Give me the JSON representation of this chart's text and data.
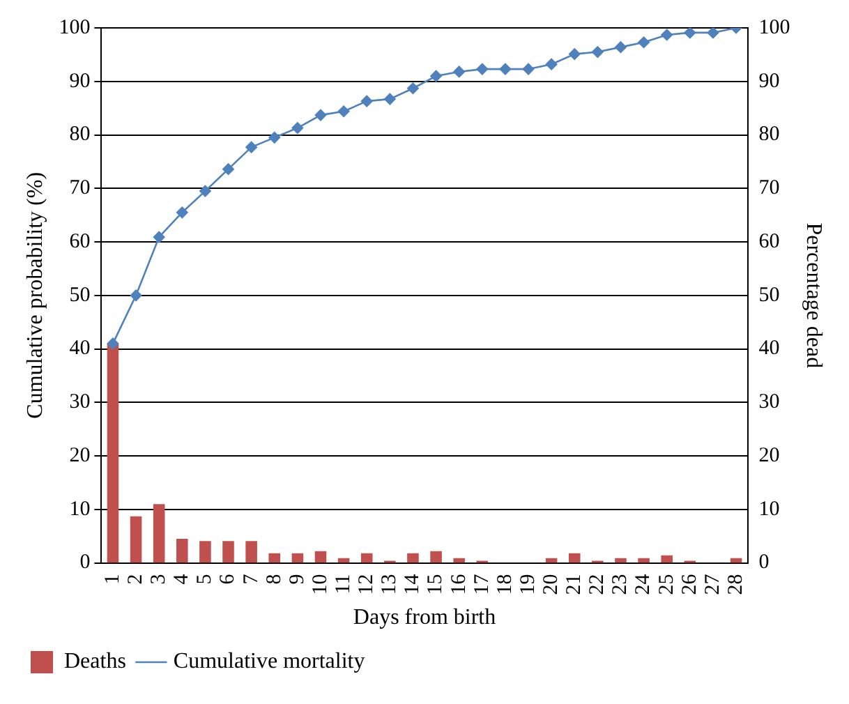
{
  "chart_data": {
    "type": "bar",
    "xlabel": "Days from birth",
    "ylabel": "Cumulative probability (%)",
    "y2label": "Percentage dead",
    "categories": [
      "1",
      "2",
      "3",
      "4",
      "5",
      "6",
      "7",
      "8",
      "9",
      "10",
      "11",
      "12",
      "13",
      "14",
      "15",
      "16",
      "17",
      "18",
      "19",
      "20",
      "21",
      "22",
      "23",
      "24",
      "25",
      "26",
      "27",
      "28"
    ],
    "series": [
      {
        "name": "Deaths",
        "axis": "y2",
        "color": "#c0504d",
        "values": [
          41,
          8.7,
          11,
          4.5,
          4.1,
          4.1,
          4.1,
          1.8,
          1.8,
          2.2,
          0.9,
          1.8,
          0.4,
          1.8,
          2.2,
          0.9,
          0.4,
          0,
          0,
          0.9,
          1.8,
          0.4,
          0.9,
          0.9,
          1.4,
          0.4,
          0,
          0.9
        ]
      },
      {
        "name": "Cumulative mortality",
        "type": "line",
        "color": "#4f81bd",
        "marker": "diamond",
        "line_style": "solid",
        "values": [
          41,
          50,
          60.9,
          65.5,
          69.5,
          73.6,
          77.7,
          79.5,
          81.3,
          83.7,
          84.4,
          86.3,
          86.7,
          88.7,
          91,
          91.8,
          92.3,
          92.3,
          92.3,
          93.2,
          95.1,
          95.5,
          96.4,
          97.3,
          98.7,
          99.1,
          99.1,
          100
        ]
      }
    ],
    "ylim": [
      0,
      100
    ],
    "yticks": [
      0,
      10,
      20,
      30,
      40,
      50,
      60,
      70,
      80,
      90,
      100
    ],
    "y2lim": [
      0,
      100
    ],
    "y2ticks": [
      0,
      10,
      20,
      30,
      40,
      50,
      60,
      70,
      80,
      90,
      100
    ],
    "grid": "y",
    "legend": "bottom"
  }
}
